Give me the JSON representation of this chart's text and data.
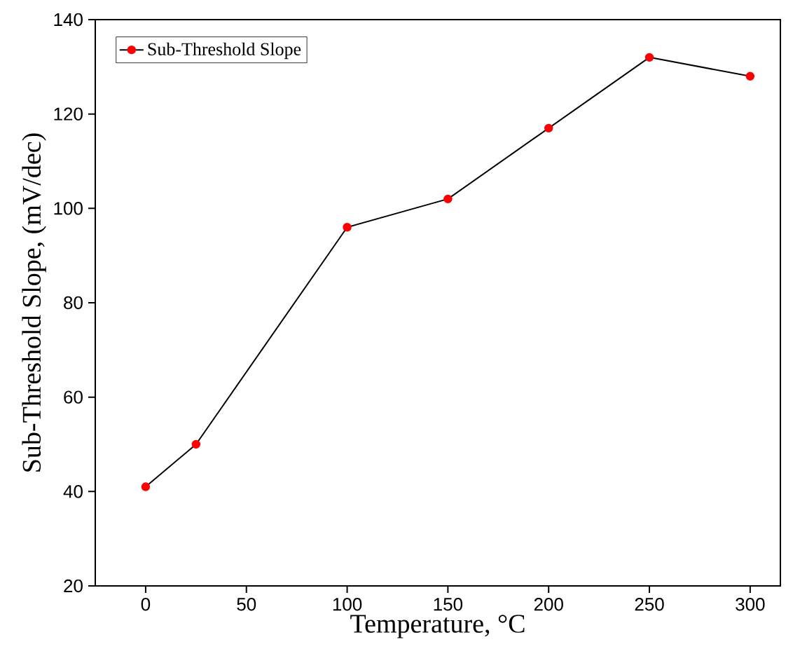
{
  "chart_data": {
    "type": "line",
    "xlabel": "Temperature, °C",
    "ylabel": "Sub-Threshold Slope, (mV/dec)",
    "x": [
      0,
      25,
      100,
      150,
      200,
      250,
      300
    ],
    "series": [
      {
        "name": "Sub-Threshold Slope",
        "color": "#ff0000",
        "values": [
          41,
          50,
          96,
          102,
          117,
          132,
          128
        ]
      }
    ],
    "xlim": [
      -25,
      315
    ],
    "ylim": [
      20,
      140
    ],
    "xticks": [
      0,
      50,
      100,
      150,
      200,
      250,
      300
    ],
    "yticks": [
      20,
      40,
      60,
      80,
      100,
      120,
      140
    ],
    "grid": false,
    "legend": "top left",
    "marker": "circle",
    "line_style": "solid"
  }
}
